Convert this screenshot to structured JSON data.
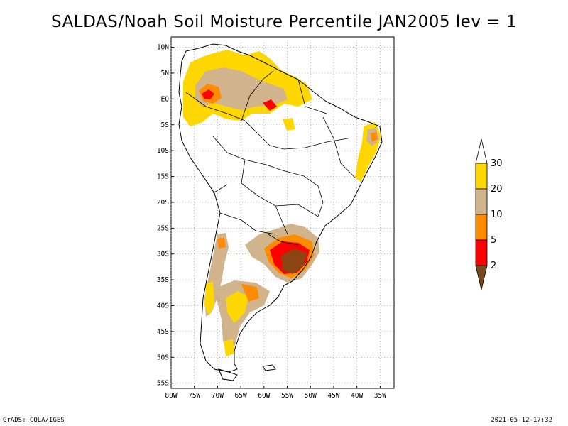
{
  "title": "SALDAS/Noah Soil Moisture Percentile JAN2005 lev = 1",
  "map": {
    "lon_range": [
      -80,
      -32
    ],
    "lat_range": [
      -56,
      12
    ],
    "lat_ticks": [
      "10N",
      "5N",
      "EQ",
      "5S",
      "10S",
      "15S",
      "20S",
      "25S",
      "30S",
      "35S",
      "40S",
      "45S",
      "50S",
      "55S"
    ],
    "lon_ticks": [
      "80W",
      "75W",
      "70W",
      "65W",
      "60W",
      "55W",
      "50W",
      "45W",
      "40W",
      "35W"
    ],
    "grid": true
  },
  "colorbar": {
    "levels": [
      "2",
      "5",
      "10",
      "20",
      "30"
    ],
    "colors": [
      "#7a4a1e",
      "#ff0000",
      "#ff8c00",
      "#d2b48c",
      "#ffd700",
      "#ffffff"
    ]
  },
  "footer": {
    "left": "GrADS: COLA/IGES",
    "right": "2021-05-12-17:32"
  }
}
